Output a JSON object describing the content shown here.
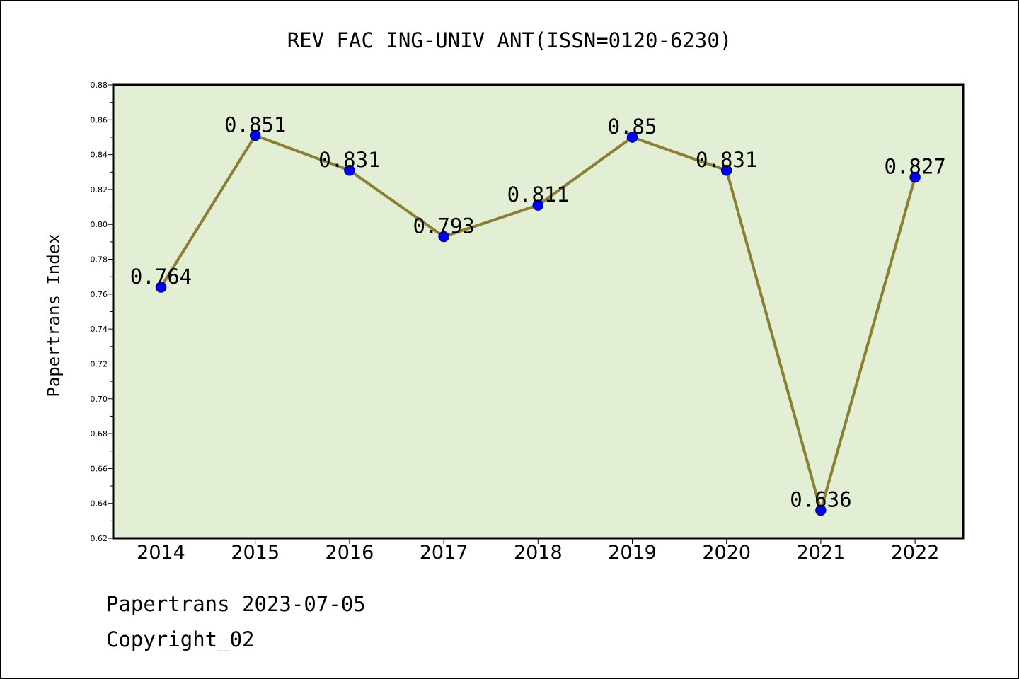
{
  "chart_data": {
    "type": "line",
    "title": "REV FAC ING-UNIV ANT(ISSN=0120-6230)",
    "xlabel": "",
    "ylabel": "Papertrans Index",
    "categories": [
      "2014",
      "2015",
      "2016",
      "2017",
      "2018",
      "2019",
      "2020",
      "2021",
      "2022"
    ],
    "series": [
      {
        "values": [
          0.764,
          0.851,
          0.831,
          0.793,
          0.811,
          0.85,
          0.831,
          0.636,
          0.827
        ],
        "labels": [
          "0.764",
          "0.851",
          "0.831",
          "0.793",
          "0.811",
          "0.85",
          "0.831",
          "0.636",
          "0.827"
        ]
      }
    ],
    "ylim": [
      0.62,
      0.88
    ],
    "yticks": [
      "0.62",
      "0.64",
      "0.66",
      "0.68",
      "0.70",
      "0.72",
      "0.74",
      "0.76",
      "0.78",
      "0.80",
      "0.82",
      "0.84",
      "0.86",
      "0.88"
    ],
    "grid": false,
    "legend": "none"
  },
  "footer": {
    "line1": "Papertrans 2023-07-05",
    "line2": "Copyright_02"
  },
  "colors": {
    "plot_bg": "#e2efd5",
    "line": "#8b7f35",
    "marker": "#0000ff",
    "marker_edge": "#00008b"
  }
}
